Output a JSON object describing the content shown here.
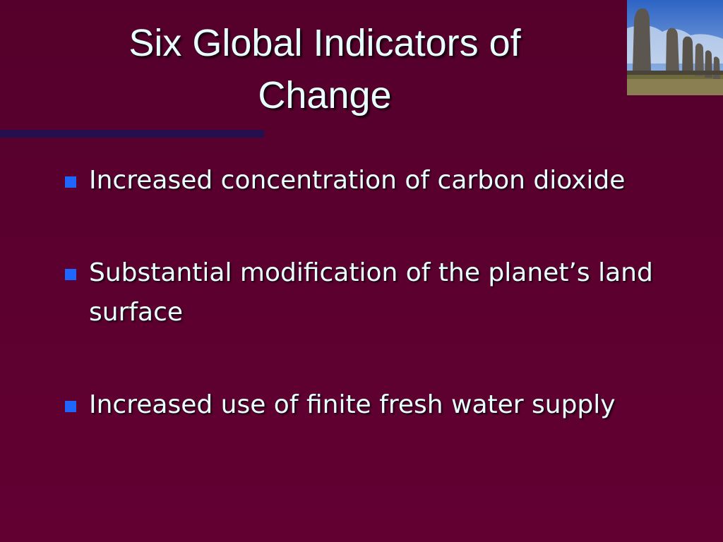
{
  "slide": {
    "title": "Six Global Indicators of Change",
    "bullets": [
      "Increased concentration of carbon dioxide",
      "Substantial modification of the planet’s land surface",
      "Increased use of finite fresh water supply"
    ]
  }
}
